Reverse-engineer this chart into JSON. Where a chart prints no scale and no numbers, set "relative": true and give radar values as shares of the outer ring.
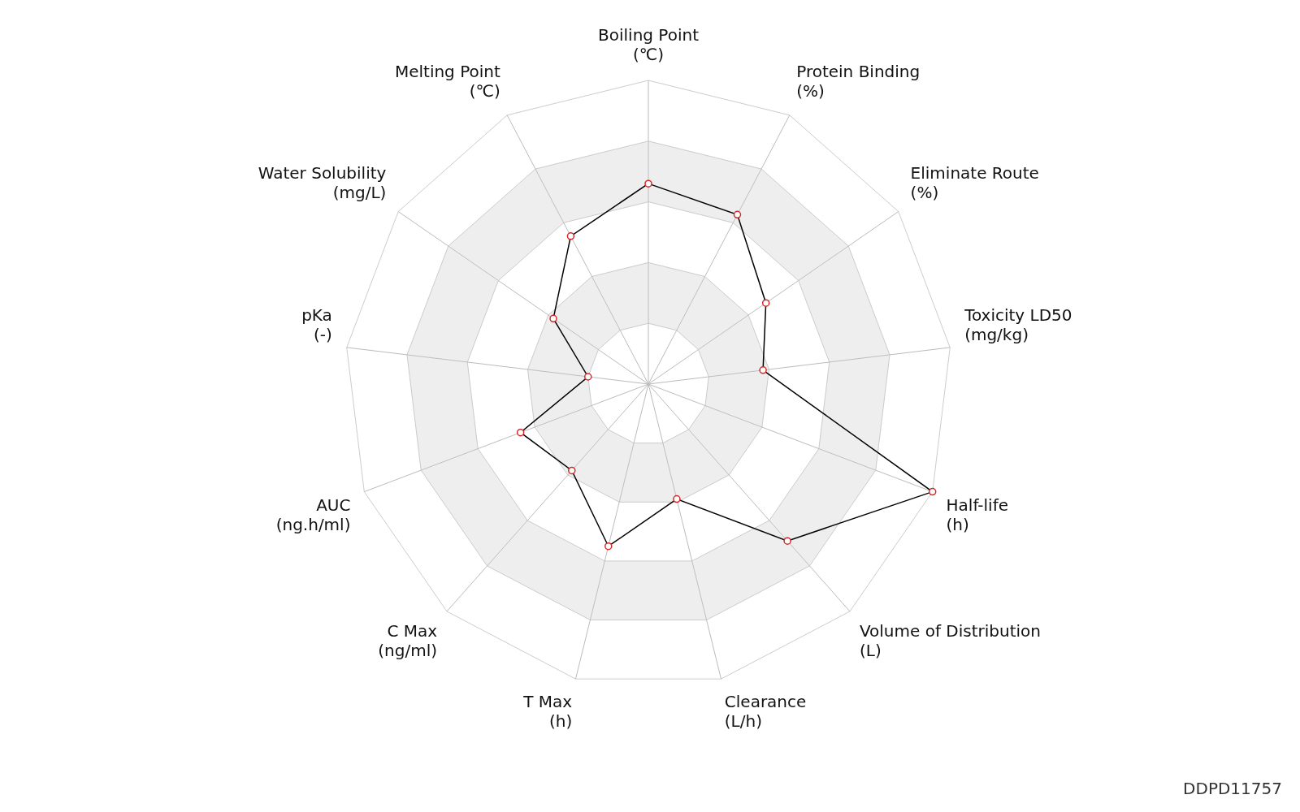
{
  "chart_data": {
    "type": "radar",
    "relative": true,
    "categories": [
      "Boiling Point\n(℃)",
      "Protein Binding\n(%)",
      "Eliminate Route\n(%)",
      "Toxicity LD50\n(mg/kg)",
      "Half-life\n(h)",
      "Volume of Distribution\n(L)",
      "Clearance\n(L/h)",
      "T Max\n(h)",
      "C Max\n(ng/ml)",
      "AUC\n(ng.h/ml)",
      "pKa\n(-)",
      "Water Solubility\n(mg/L)",
      "Melting Point\n(℃)"
    ],
    "series": [
      {
        "color": "#000000",
        "values": [
          0.66,
          0.63,
          0.47,
          0.38,
          1.0,
          0.69,
          0.39,
          0.55,
          0.38,
          0.45,
          0.2,
          0.38,
          0.55
        ]
      }
    ],
    "marker": "circle",
    "legend": false,
    "annotations": [
      "DDPD11757"
    ]
  }
}
